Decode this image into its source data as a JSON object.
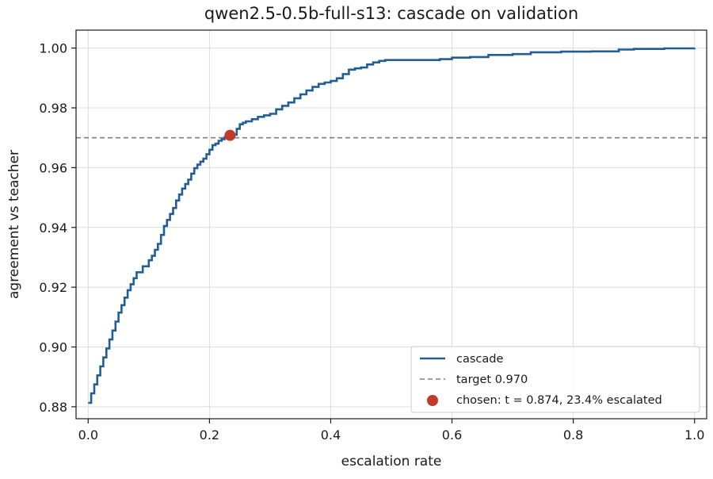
{
  "chart_data": {
    "type": "line",
    "title": "qwen2.5-0.5b-full-s13: cascade on validation",
    "xlabel": "escalation rate",
    "ylabel": "agreement vs teacher",
    "xlim": [
      -0.02,
      1.02
    ],
    "ylim": [
      0.876,
      1.006
    ],
    "xticks": [
      0.0,
      0.2,
      0.4,
      0.6,
      0.8,
      1.0
    ],
    "xtick_labels": [
      "0.0",
      "0.2",
      "0.4",
      "0.6",
      "0.8",
      "1.0"
    ],
    "yticks": [
      0.88,
      0.9,
      0.92,
      0.94,
      0.96,
      0.98,
      1.0
    ],
    "ytick_labels": [
      "0.88",
      "0.90",
      "0.92",
      "0.94",
      "0.96",
      "0.98",
      "1.00"
    ],
    "grid": true,
    "legend_position": "lower-right",
    "series": [
      {
        "name": "cascade",
        "kind": "line",
        "color": "#225e95",
        "x": [
          0.0,
          0.005,
          0.01,
          0.015,
          0.02,
          0.025,
          0.03,
          0.035,
          0.04,
          0.045,
          0.05,
          0.055,
          0.06,
          0.065,
          0.07,
          0.075,
          0.08,
          0.09,
          0.1,
          0.105,
          0.11,
          0.115,
          0.12,
          0.125,
          0.13,
          0.135,
          0.14,
          0.145,
          0.15,
          0.155,
          0.16,
          0.165,
          0.17,
          0.175,
          0.18,
          0.185,
          0.19,
          0.195,
          0.2,
          0.205,
          0.21,
          0.215,
          0.22,
          0.225,
          0.23,
          0.235,
          0.24,
          0.245,
          0.25,
          0.255,
          0.26,
          0.27,
          0.28,
          0.29,
          0.3,
          0.31,
          0.32,
          0.33,
          0.34,
          0.35,
          0.36,
          0.37,
          0.38,
          0.39,
          0.4,
          0.41,
          0.42,
          0.43,
          0.44,
          0.45,
          0.46,
          0.47,
          0.48,
          0.49,
          0.52,
          0.55,
          0.58,
          0.6,
          0.63,
          0.66,
          0.7,
          0.73,
          0.78,
          0.83,
          0.875,
          0.9,
          0.95,
          1.0
        ],
        "y": [
          0.8813,
          0.8845,
          0.8875,
          0.8905,
          0.8935,
          0.8965,
          0.8995,
          0.9025,
          0.9055,
          0.9085,
          0.9115,
          0.914,
          0.9165,
          0.919,
          0.921,
          0.923,
          0.925,
          0.927,
          0.929,
          0.9305,
          0.9325,
          0.9345,
          0.9375,
          0.9405,
          0.9425,
          0.9445,
          0.9465,
          0.949,
          0.951,
          0.953,
          0.9545,
          0.956,
          0.958,
          0.9598,
          0.961,
          0.962,
          0.963,
          0.9645,
          0.966,
          0.9675,
          0.968,
          0.969,
          0.9695,
          0.9702,
          0.9707,
          0.9708,
          0.971,
          0.973,
          0.9745,
          0.975,
          0.9755,
          0.9762,
          0.977,
          0.9775,
          0.978,
          0.9795,
          0.9807,
          0.9818,
          0.9832,
          0.9845,
          0.9858,
          0.987,
          0.988,
          0.9885,
          0.989,
          0.9899,
          0.9913,
          0.9928,
          0.9932,
          0.9935,
          0.9945,
          0.9952,
          0.9957,
          0.996,
          0.996,
          0.996,
          0.9963,
          0.9968,
          0.997,
          0.9977,
          0.998,
          0.9986,
          0.9988,
          0.9989,
          0.9995,
          0.9997,
          0.9999,
          1.0
        ]
      },
      {
        "name": "target 0.970",
        "kind": "hline",
        "color": "#7f7f7f",
        "y": 0.97
      },
      {
        "name": "chosen: t = 0.874, 23.4% escalated",
        "kind": "point",
        "color": "#c0392b",
        "x": 0.234,
        "y": 0.9708
      }
    ]
  }
}
